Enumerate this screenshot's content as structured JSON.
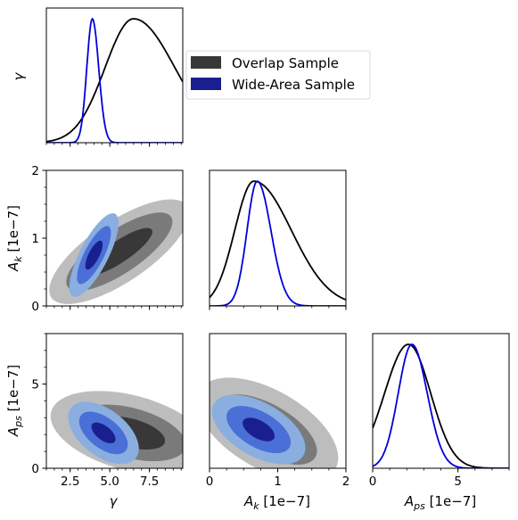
{
  "chart_data": {
    "type": "corner-plot",
    "parameters": [
      {
        "key": "gamma",
        "label": "γ",
        "ticks": [
          2.5,
          5.0,
          7.5
        ],
        "tick_labels": [
          "2.5",
          "5.0",
          "7.5"
        ],
        "range": [
          1.0,
          9.6
        ]
      },
      {
        "key": "A_k",
        "label": "A_k  [1e−7]",
        "ticks": [
          0,
          1,
          2
        ],
        "tick_labels": [
          "0",
          "1",
          "2"
        ],
        "range": [
          0,
          2
        ]
      },
      {
        "key": "A_ps",
        "label": "A_ps  [1e−7]",
        "ticks": [
          0,
          5
        ],
        "tick_labels": [
          "0",
          "5"
        ],
        "range": [
          0,
          8
        ]
      }
    ],
    "y_ticks": {
      "A_k": {
        "ticks": [
          0,
          1,
          2
        ],
        "labels": [
          "0",
          "1",
          "2"
        ]
      },
      "A_ps": {
        "ticks": [
          0,
          5
        ],
        "labels": [
          "0",
          "5"
        ],
        "range": [
          0,
          8
        ]
      }
    },
    "series": [
      {
        "name": "Overlap Sample",
        "color": "#000000",
        "fill_colors": [
          "#bdbdbd",
          "#7a7a7a",
          "#383838"
        ],
        "marginals": {
          "gamma": {
            "mode": 6.5,
            "sigma_left": 1.8,
            "sigma_right": 2.6
          },
          "A_k": {
            "mode": 0.65,
            "sigma_left": 0.28,
            "sigma_right": 0.55
          },
          "A_ps": {
            "mode": 2.1,
            "sigma_left": 1.4,
            "sigma_right": 1.3
          }
        }
      },
      {
        "name": "Wide-Area Sample",
        "color": "#0000dd",
        "fill_colors": [
          "#8aaee0",
          "#4a6fd6",
          "#1a1f8f"
        ],
        "marginals": {
          "gamma": {
            "mode": 3.9,
            "sigma_left": 0.35,
            "sigma_right": 0.4
          },
          "A_k": {
            "mode": 0.7,
            "sigma_left": 0.15,
            "sigma_right": 0.2
          },
          "A_ps": {
            "mode": 2.3,
            "sigma_left": 0.8,
            "sigma_right": 0.9
          }
        }
      }
    ],
    "legend": {
      "placement": "right of top-left panel",
      "entries": [
        "Overlap Sample",
        "Wide-Area Sample"
      ]
    }
  }
}
